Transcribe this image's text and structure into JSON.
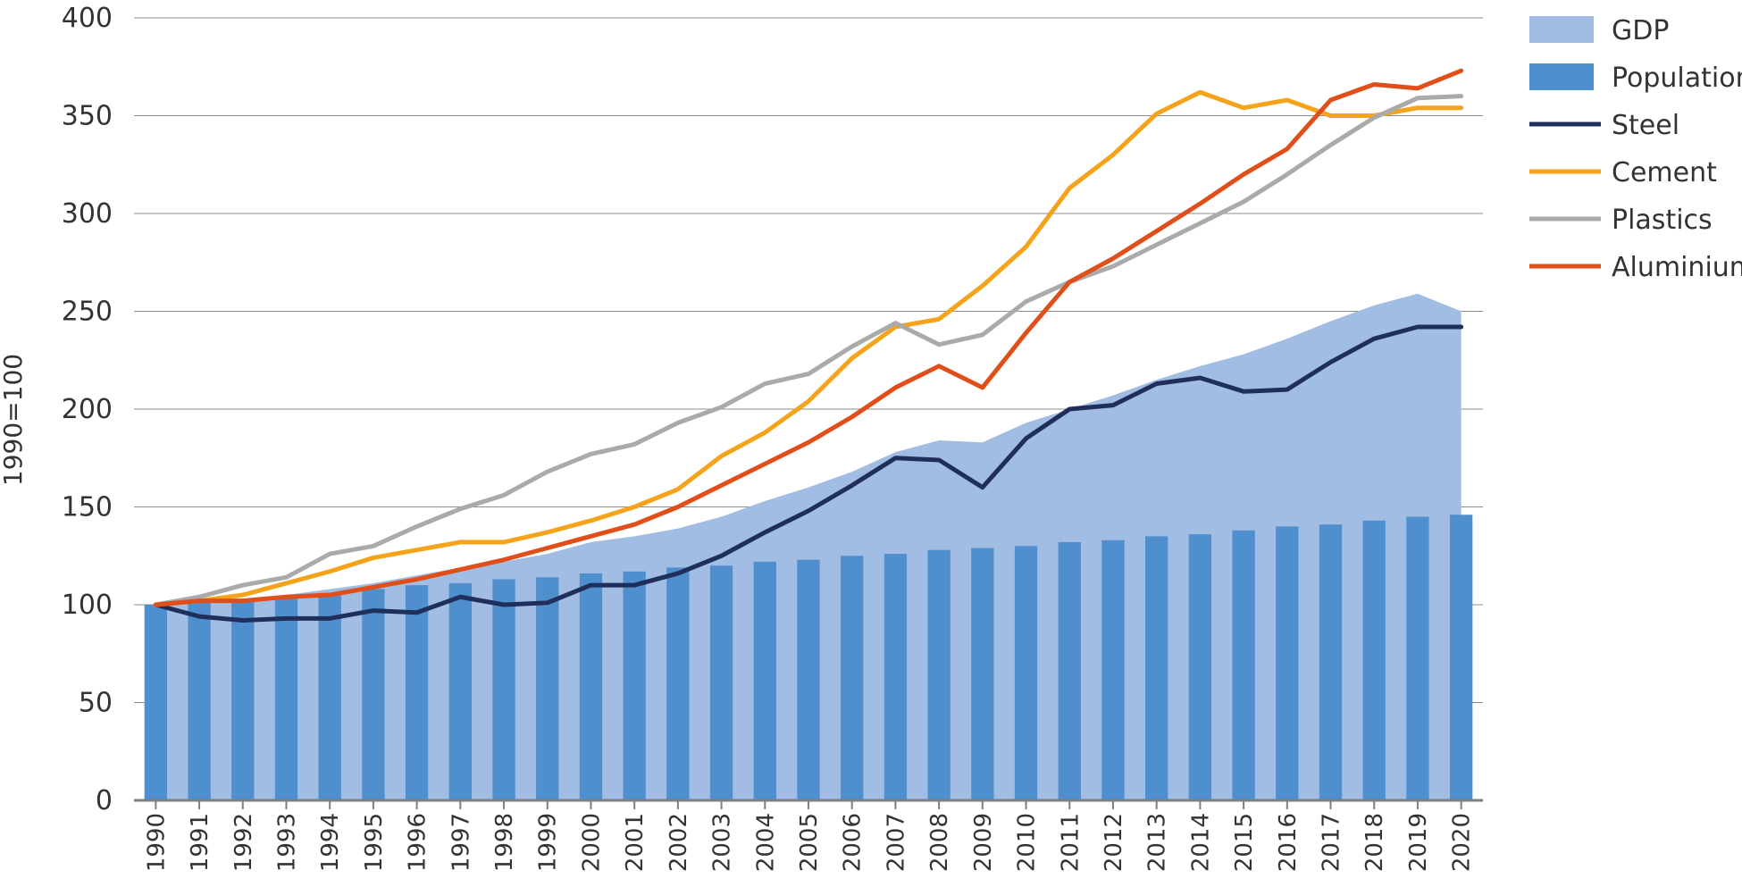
{
  "chart_data": {
    "type": "bar",
    "ylabel": "1990=100",
    "xlabel": "",
    "ylim": [
      0,
      400
    ],
    "yticks": [
      0,
      50,
      100,
      150,
      200,
      250,
      300,
      350,
      400
    ],
    "grid": true,
    "legend_position": "right",
    "categories": [
      "1990",
      "1991",
      "1992",
      "1993",
      "1994",
      "1995",
      "1996",
      "1997",
      "1998",
      "1999",
      "2000",
      "2001",
      "2002",
      "2003",
      "2004",
      "2005",
      "2006",
      "2007",
      "2008",
      "2009",
      "2010",
      "2011",
      "2012",
      "2013",
      "2014",
      "2015",
      "2016",
      "2017",
      "2018",
      "2019",
      "2020"
    ],
    "series": [
      {
        "name": "GDP",
        "kind": "area",
        "color": "#a2bde4",
        "values": [
          100,
          101,
          103,
          105,
          108,
          111,
          115,
          119,
          122,
          126,
          132,
          135,
          139,
          145,
          153,
          160,
          168,
          178,
          184,
          183,
          193,
          200,
          207,
          215,
          222,
          228,
          236,
          245,
          253,
          259,
          250
        ]
      },
      {
        "name": "Population",
        "kind": "bar",
        "color": "#4f8fce",
        "values": [
          100,
          101,
          103,
          104,
          106,
          108,
          110,
          111,
          113,
          114,
          116,
          117,
          119,
          120,
          122,
          123,
          125,
          126,
          128,
          129,
          130,
          132,
          133,
          135,
          136,
          138,
          140,
          141,
          143,
          145,
          146
        ]
      },
      {
        "name": "Steel",
        "kind": "line",
        "color": "#1f2e5a",
        "values": [
          100,
          94,
          92,
          93,
          93,
          97,
          96,
          104,
          100,
          101,
          110,
          110,
          116,
          125,
          137,
          148,
          161,
          175,
          174,
          160,
          185,
          200,
          202,
          213,
          216,
          209,
          210,
          224,
          236,
          242,
          242
        ]
      },
      {
        "name": "Cement",
        "kind": "line",
        "color": "#f5a31a",
        "values": [
          100,
          102,
          105,
          111,
          117,
          124,
          128,
          132,
          132,
          137,
          143,
          150,
          159,
          176,
          188,
          204,
          226,
          242,
          246,
          263,
          283,
          313,
          330,
          351,
          362,
          354,
          358,
          350,
          350,
          354,
          354
        ]
      },
      {
        "name": "Plastics",
        "kind": "line",
        "color": "#aaaaaa",
        "values": [
          100,
          104,
          110,
          114,
          126,
          130,
          140,
          149,
          156,
          168,
          177,
          182,
          193,
          201,
          213,
          218,
          232,
          244,
          233,
          238,
          255,
          265,
          273,
          284,
          295,
          306,
          320,
          335,
          349,
          359,
          360
        ]
      },
      {
        "name": "Aluminium",
        "kind": "line",
        "color": "#e04e1a",
        "values": [
          100,
          102,
          102,
          104,
          105,
          109,
          113,
          118,
          123,
          129,
          135,
          141,
          150,
          161,
          172,
          183,
          196,
          211,
          222,
          211,
          239,
          265,
          277,
          291,
          305,
          320,
          333,
          358,
          366,
          364,
          373
        ]
      }
    ]
  }
}
